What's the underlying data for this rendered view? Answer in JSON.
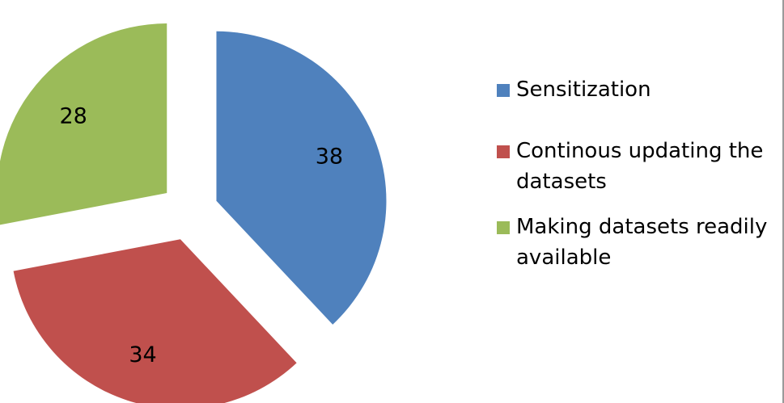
{
  "chart_data": {
    "type": "pie",
    "exploded": true,
    "categories": [
      "Sensitization",
      "Continous updating the datasets",
      "Making datasets readily available"
    ],
    "values": [
      38,
      34,
      28
    ],
    "colors": [
      "#4f81bd",
      "#c0504d",
      "#9bbb59"
    ],
    "data_labels": [
      "38",
      "34",
      "28"
    ],
    "legend": {
      "position": "right",
      "entries": [
        "Sensitization",
        "Continous updating the datasets",
        "Making datasets readily available"
      ]
    }
  }
}
